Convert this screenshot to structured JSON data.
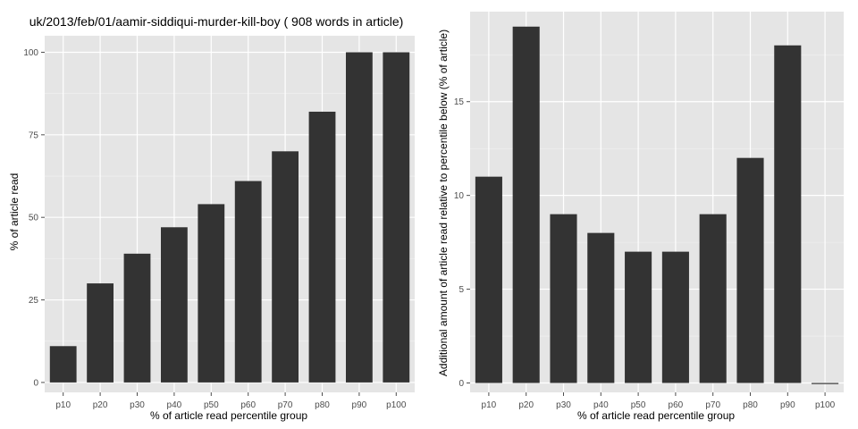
{
  "style": {
    "panel_background": "#e5e5e5",
    "grid_major": "#ffffff",
    "grid_minor": "#f2f2f2",
    "bar_fill": "#333333",
    "tick_color": "#4d4d4d"
  },
  "chart_data": [
    {
      "type": "bar",
      "title": "uk/2013/feb/01/aamir-siddiqui-murder-kill-boy ( 908 words in article)",
      "xlabel": "% of article read percentile group",
      "ylabel": "% of article read",
      "categories": [
        "p10",
        "p20",
        "p30",
        "p40",
        "p50",
        "p60",
        "p70",
        "p80",
        "p90",
        "p100"
      ],
      "values": [
        11,
        30,
        39,
        47,
        54,
        61,
        70,
        82,
        100,
        100
      ],
      "ylim": [
        -3,
        105
      ],
      "yticks": [
        0,
        25,
        50,
        75,
        100
      ],
      "yticklabels": [
        "0",
        "25",
        "50",
        "75",
        "100"
      ],
      "grid": true,
      "legend": "none"
    },
    {
      "type": "bar",
      "title": "",
      "xlabel": "% of article read percentile group",
      "ylabel": "Additional amount of article read relative to percentile below (% of article)",
      "categories": [
        "p10",
        "p20",
        "p30",
        "p40",
        "p50",
        "p60",
        "p70",
        "p80",
        "p90",
        "p100"
      ],
      "values": [
        11,
        19,
        9,
        8,
        7,
        7,
        9,
        12,
        18,
        0
      ],
      "ylim": [
        -0.5,
        19.8
      ],
      "yticks": [
        0,
        5,
        10,
        15
      ],
      "yticklabels": [
        "0",
        "5",
        "10",
        "15"
      ],
      "grid": true,
      "legend": "none"
    }
  ]
}
